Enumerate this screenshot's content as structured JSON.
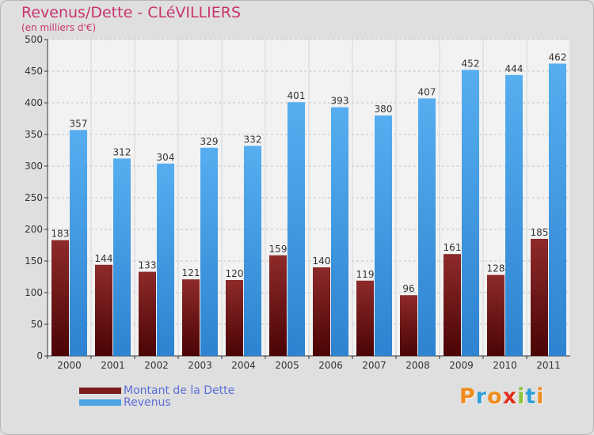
{
  "title": "Revenus/Dette - CLéVILLIERS",
  "subtitle": "(en milliers d'€)",
  "legend": [
    {
      "label": "Montant de la Dette",
      "color": "#7a1c1c"
    },
    {
      "label": "Revenus",
      "color": "#4ba3e3"
    }
  ],
  "logo": {
    "text": "Proxiti",
    "letters": [
      "P",
      "r",
      "o",
      "x",
      "i",
      "t",
      "i"
    ],
    "colors": [
      "#f08c1e",
      "#2f9fd6",
      "#f08c1e",
      "#e03020",
      "#8cc43c",
      "#2f9fd6",
      "#f08c1e"
    ]
  },
  "colors": {
    "dette": "#7a1c1c",
    "revenus": "#4ba3e3"
  },
  "chart_data": {
    "type": "bar",
    "categories": [
      "2000",
      "2001",
      "2002",
      "2003",
      "2004",
      "2005",
      "2006",
      "2007",
      "2008",
      "2009",
      "2010",
      "2011"
    ],
    "series": [
      {
        "name": "Montant de la Dette",
        "values": [
          183,
          144,
          133,
          121,
          120,
          159,
          140,
          119,
          96,
          161,
          128,
          185
        ]
      },
      {
        "name": "Revenus",
        "values": [
          357,
          312,
          304,
          329,
          332,
          401,
          393,
          380,
          407,
          452,
          444,
          462
        ]
      }
    ],
    "title": "Revenus/Dette - CLéVILLIERS",
    "ylabel": "(en milliers d'€)",
    "yticks": [
      "0",
      "50",
      "100",
      "150",
      "200",
      "250",
      "300",
      "350",
      "400",
      "450",
      "500"
    ],
    "ylim": [
      0,
      500
    ],
    "grid": true,
    "legend_position": "bottom-left"
  }
}
